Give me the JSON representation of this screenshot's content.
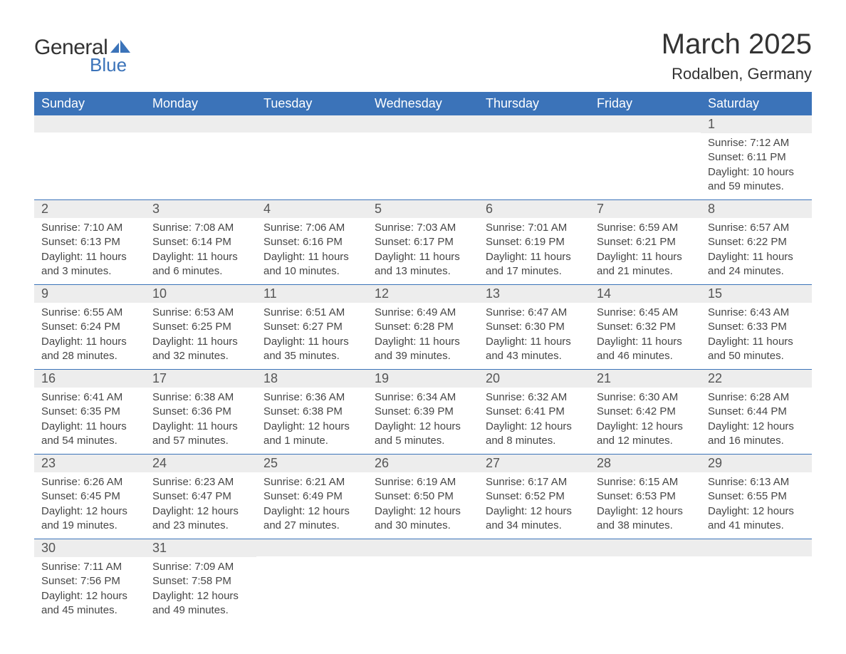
{
  "logo": {
    "text1": "General",
    "text2": "Blue",
    "flag_color": "#3b73b9"
  },
  "title": "March 2025",
  "location": "Rodalben, Germany",
  "colors": {
    "header_bg": "#3b73b9",
    "header_fg": "#ffffff",
    "row_divider": "#3b73b9",
    "daynum_bg": "#ededed",
    "text": "#464646"
  },
  "weekdays": [
    "Sunday",
    "Monday",
    "Tuesday",
    "Wednesday",
    "Thursday",
    "Friday",
    "Saturday"
  ],
  "first_weekday_index": 6,
  "days": [
    {
      "n": 1,
      "sunrise": "7:12 AM",
      "sunset": "6:11 PM",
      "daylight": "10 hours and 59 minutes."
    },
    {
      "n": 2,
      "sunrise": "7:10 AM",
      "sunset": "6:13 PM",
      "daylight": "11 hours and 3 minutes."
    },
    {
      "n": 3,
      "sunrise": "7:08 AM",
      "sunset": "6:14 PM",
      "daylight": "11 hours and 6 minutes."
    },
    {
      "n": 4,
      "sunrise": "7:06 AM",
      "sunset": "6:16 PM",
      "daylight": "11 hours and 10 minutes."
    },
    {
      "n": 5,
      "sunrise": "7:03 AM",
      "sunset": "6:17 PM",
      "daylight": "11 hours and 13 minutes."
    },
    {
      "n": 6,
      "sunrise": "7:01 AM",
      "sunset": "6:19 PM",
      "daylight": "11 hours and 17 minutes."
    },
    {
      "n": 7,
      "sunrise": "6:59 AM",
      "sunset": "6:21 PM",
      "daylight": "11 hours and 21 minutes."
    },
    {
      "n": 8,
      "sunrise": "6:57 AM",
      "sunset": "6:22 PM",
      "daylight": "11 hours and 24 minutes."
    },
    {
      "n": 9,
      "sunrise": "6:55 AM",
      "sunset": "6:24 PM",
      "daylight": "11 hours and 28 minutes."
    },
    {
      "n": 10,
      "sunrise": "6:53 AM",
      "sunset": "6:25 PM",
      "daylight": "11 hours and 32 minutes."
    },
    {
      "n": 11,
      "sunrise": "6:51 AM",
      "sunset": "6:27 PM",
      "daylight": "11 hours and 35 minutes."
    },
    {
      "n": 12,
      "sunrise": "6:49 AM",
      "sunset": "6:28 PM",
      "daylight": "11 hours and 39 minutes."
    },
    {
      "n": 13,
      "sunrise": "6:47 AM",
      "sunset": "6:30 PM",
      "daylight": "11 hours and 43 minutes."
    },
    {
      "n": 14,
      "sunrise": "6:45 AM",
      "sunset": "6:32 PM",
      "daylight": "11 hours and 46 minutes."
    },
    {
      "n": 15,
      "sunrise": "6:43 AM",
      "sunset": "6:33 PM",
      "daylight": "11 hours and 50 minutes."
    },
    {
      "n": 16,
      "sunrise": "6:41 AM",
      "sunset": "6:35 PM",
      "daylight": "11 hours and 54 minutes."
    },
    {
      "n": 17,
      "sunrise": "6:38 AM",
      "sunset": "6:36 PM",
      "daylight": "11 hours and 57 minutes."
    },
    {
      "n": 18,
      "sunrise": "6:36 AM",
      "sunset": "6:38 PM",
      "daylight": "12 hours and 1 minute."
    },
    {
      "n": 19,
      "sunrise": "6:34 AM",
      "sunset": "6:39 PM",
      "daylight": "12 hours and 5 minutes."
    },
    {
      "n": 20,
      "sunrise": "6:32 AM",
      "sunset": "6:41 PM",
      "daylight": "12 hours and 8 minutes."
    },
    {
      "n": 21,
      "sunrise": "6:30 AM",
      "sunset": "6:42 PM",
      "daylight": "12 hours and 12 minutes."
    },
    {
      "n": 22,
      "sunrise": "6:28 AM",
      "sunset": "6:44 PM",
      "daylight": "12 hours and 16 minutes."
    },
    {
      "n": 23,
      "sunrise": "6:26 AM",
      "sunset": "6:45 PM",
      "daylight": "12 hours and 19 minutes."
    },
    {
      "n": 24,
      "sunrise": "6:23 AM",
      "sunset": "6:47 PM",
      "daylight": "12 hours and 23 minutes."
    },
    {
      "n": 25,
      "sunrise": "6:21 AM",
      "sunset": "6:49 PM",
      "daylight": "12 hours and 27 minutes."
    },
    {
      "n": 26,
      "sunrise": "6:19 AM",
      "sunset": "6:50 PM",
      "daylight": "12 hours and 30 minutes."
    },
    {
      "n": 27,
      "sunrise": "6:17 AM",
      "sunset": "6:52 PM",
      "daylight": "12 hours and 34 minutes."
    },
    {
      "n": 28,
      "sunrise": "6:15 AM",
      "sunset": "6:53 PM",
      "daylight": "12 hours and 38 minutes."
    },
    {
      "n": 29,
      "sunrise": "6:13 AM",
      "sunset": "6:55 PM",
      "daylight": "12 hours and 41 minutes."
    },
    {
      "n": 30,
      "sunrise": "7:11 AM",
      "sunset": "7:56 PM",
      "daylight": "12 hours and 45 minutes."
    },
    {
      "n": 31,
      "sunrise": "7:09 AM",
      "sunset": "7:58 PM",
      "daylight": "12 hours and 49 minutes."
    }
  ],
  "labels": {
    "sunrise": "Sunrise:",
    "sunset": "Sunset:",
    "daylight": "Daylight:"
  }
}
